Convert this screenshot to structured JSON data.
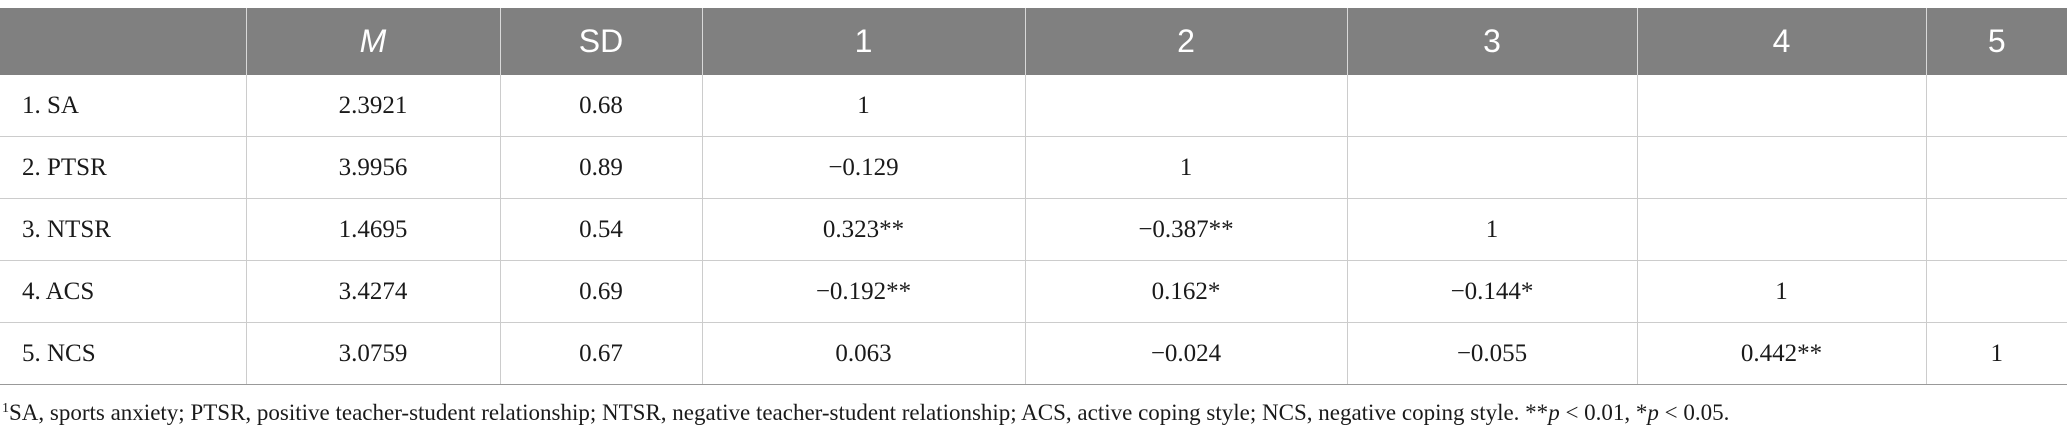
{
  "table": {
    "headers": [
      "",
      "M",
      "SD",
      "1",
      "2",
      "3",
      "4",
      "5"
    ],
    "rows": [
      [
        "1.  SA",
        "2.3921",
        "0.68",
        "1",
        "",
        "",
        "",
        ""
      ],
      [
        "2.  PTSR",
        "3.9956",
        "0.89",
        "−0.129",
        "1",
        "",
        "",
        ""
      ],
      [
        "3.  NTSR",
        "1.4695",
        "0.54",
        "0.323**",
        "−0.387**",
        "1",
        "",
        ""
      ],
      [
        "4.  ACS",
        "3.4274",
        "0.69",
        "−0.192**",
        "0.162*",
        "−0.144*",
        "1",
        ""
      ],
      [
        "5.  NCS",
        "3.0759",
        "0.67",
        "0.063",
        "−0.024",
        "−0.055",
        "0.442**",
        "1"
      ]
    ]
  },
  "footnote": {
    "marker": "1",
    "text": "SA, sports anxiety; PTSR, positive teacher-student relationship; NTSR, negative teacher-student relationship; ACS, active coping style; NCS, negative coping style. **",
    "p1": "p",
    "mid": " < 0.01, *",
    "p2": "p",
    "end": " < 0.05."
  }
}
